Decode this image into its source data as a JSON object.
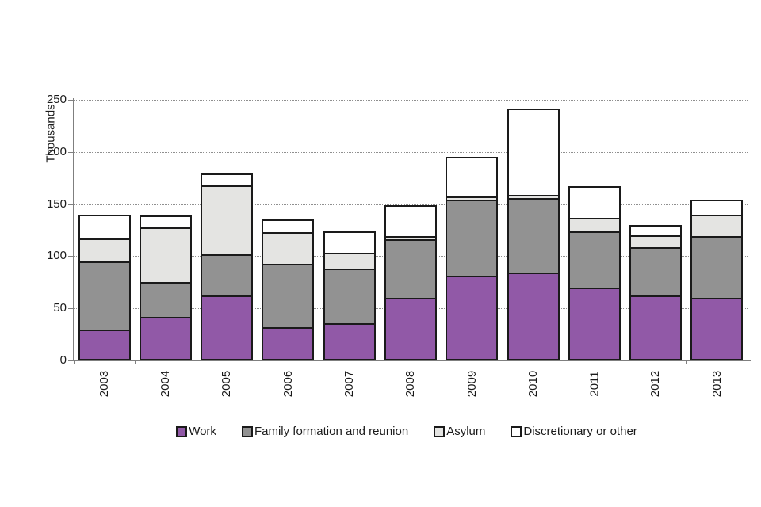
{
  "chart_data": {
    "type": "bar",
    "stacked": true,
    "title": "",
    "xlabel": "",
    "ylabel": "Thousands",
    "ylim": [
      0,
      250
    ],
    "yticks": [
      0,
      50,
      100,
      150,
      200,
      250
    ],
    "grid": "horizontal-dotted",
    "legend_position": "bottom",
    "categories": [
      "2003",
      "2004",
      "2005",
      "2006",
      "2007",
      "2008",
      "2009",
      "2010",
      "2011",
      "2012",
      "2013"
    ],
    "series": [
      {
        "name": "Work",
        "color": "#9159a7",
        "values": [
          30,
          42,
          62,
          32,
          36,
          60,
          81,
          84,
          70,
          62,
          60
        ]
      },
      {
        "name": "Family formation and reunion",
        "color": "#929292",
        "values": [
          65,
          33,
          40,
          61,
          52,
          56,
          73,
          72,
          54,
          47,
          59
        ]
      },
      {
        "name": "Asylum",
        "color": "#e4e4e2",
        "values": [
          22,
          53,
          66,
          30,
          15,
          3,
          3,
          3,
          13,
          11,
          21
        ]
      },
      {
        "name": "Discretionary or other",
        "color": "#ffffff",
        "values": [
          23,
          11,
          11,
          12,
          21,
          30,
          38,
          83,
          30,
          10,
          14
        ]
      }
    ],
    "totals": [
      140,
      139,
      179,
      135,
      124,
      149,
      195,
      242,
      167,
      130,
      154
    ],
    "colors": {
      "outline": "#1a1a1a",
      "axis": "#7f7f7f",
      "gridline": "#8f8f8f"
    }
  }
}
